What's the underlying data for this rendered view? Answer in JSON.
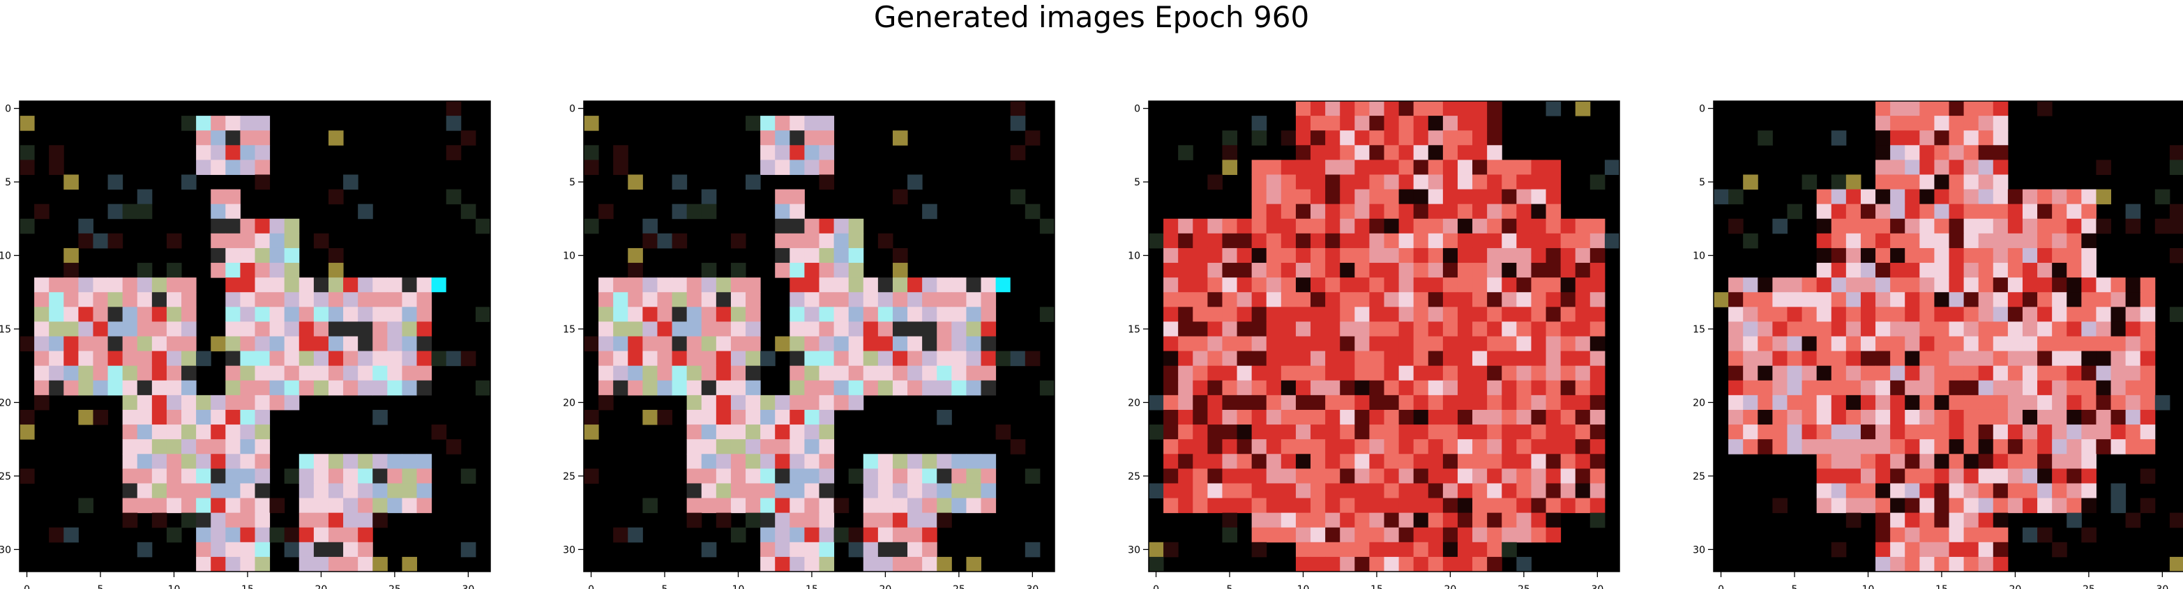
{
  "title": "Generated images Epoch 960",
  "chart_data": {
    "type": "heatmap",
    "title": "Generated images Epoch 960",
    "grid_size": 32,
    "xlim": [
      -0.5,
      31.5
    ],
    "ylim": [
      31.5,
      -0.5
    ],
    "xticks": [
      0,
      5,
      10,
      15,
      20,
      25,
      30
    ],
    "yticks": [
      0,
      5,
      10,
      15,
      20,
      25,
      30
    ],
    "grid": false,
    "panels": [
      {
        "id": "image-1",
        "description_shape": "sparse-cross",
        "seed": 11,
        "style": "pastel"
      },
      {
        "id": "image-2",
        "description_shape": "sparse-cross",
        "seed": 11,
        "style": "pastel"
      },
      {
        "id": "image-3",
        "description_shape": "dense-cross",
        "seed": 37,
        "style": "red"
      },
      {
        "id": "image-4",
        "description_shape": "medium-cross",
        "seed": 53,
        "style": "red-pastel"
      }
    ],
    "colors": {
      "background": "#000000",
      "pink": "#e89aa0",
      "red": "#d9302c",
      "dark_red": "#5a0a0a",
      "light": "#f3d4df",
      "cyan": "#a6f0f2",
      "accent_cyan": "#11f0ff",
      "olive": "#9a8a3a"
    }
  }
}
